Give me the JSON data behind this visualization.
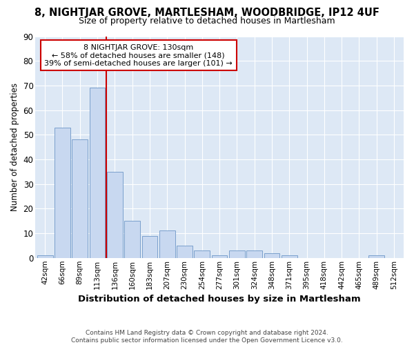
{
  "title": "8, NIGHTJAR GROVE, MARTLESHAM, WOODBRIDGE, IP12 4UF",
  "subtitle": "Size of property relative to detached houses in Martlesham",
  "xlabel": "Distribution of detached houses by size in Martlesham",
  "ylabel": "Number of detached properties",
  "bar_color": "#c8d8f0",
  "bar_edge_color": "#7aa0cc",
  "background_color": "#dde8f5",
  "grid_color": "#ffffff",
  "fig_bg": "#ffffff",
  "categories": [
    "42sqm",
    "66sqm",
    "89sqm",
    "113sqm",
    "136sqm",
    "160sqm",
    "183sqm",
    "207sqm",
    "230sqm",
    "254sqm",
    "277sqm",
    "301sqm",
    "324sqm",
    "348sqm",
    "371sqm",
    "395sqm",
    "418sqm",
    "442sqm",
    "465sqm",
    "489sqm",
    "512sqm"
  ],
  "values": [
    1,
    53,
    48,
    69,
    35,
    15,
    9,
    11,
    5,
    3,
    1,
    3,
    3,
    2,
    1,
    0,
    0,
    0,
    0,
    1,
    0
  ],
  "ylim": [
    0,
    90
  ],
  "yticks": [
    0,
    10,
    20,
    30,
    40,
    50,
    60,
    70,
    80,
    90
  ],
  "vline_position": 3.5,
  "vline_color": "#cc0000",
  "annotation_title": "8 NIGHTJAR GROVE: 130sqm",
  "annotation_line1": "← 58% of detached houses are smaller (148)",
  "annotation_line2": "39% of semi-detached houses are larger (101) →",
  "annotation_box_color": "#ffffff",
  "annotation_box_edge": "#cc0000",
  "footer_line1": "Contains HM Land Registry data © Crown copyright and database right 2024.",
  "footer_line2": "Contains public sector information licensed under the Open Government Licence v3.0."
}
